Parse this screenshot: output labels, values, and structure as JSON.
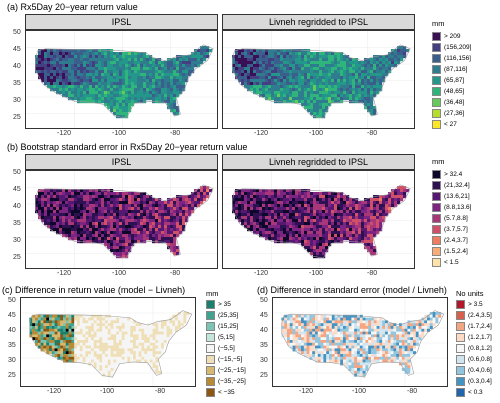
{
  "figure": {
    "panel_a": {
      "title": "(a) Rx5Day 20−year return value",
      "facets": [
        "IPSL",
        "Livneh regridded to IPSL"
      ],
      "legend_title": "mm",
      "legend": [
        {
          "label": "> 209",
          "color": "#3b0f56"
        },
        {
          "label": "(156,209]",
          "color": "#433f83"
        },
        {
          "label": "(116,156]",
          "color": "#3b5f8c"
        },
        {
          "label": "(87,116]",
          "color": "#2f7c8e"
        },
        {
          "label": "(65,87]",
          "color": "#23978a"
        },
        {
          "label": "(48,65]",
          "color": "#2fb47c"
        },
        {
          "label": "(36,48]",
          "color": "#66c95c"
        },
        {
          "label": "(27,36]",
          "color": "#b4dd2c"
        },
        {
          "label": "< 27",
          "color": "#fde725"
        }
      ],
      "yticks": [
        "50",
        "45",
        "40",
        "35",
        "30",
        "25"
      ],
      "xticks": [
        "-120",
        "-100",
        "-80"
      ]
    },
    "panel_b": {
      "title": "(b) Bootstrap standard error in Rx5Day 20−year return value",
      "facets": [
        "IPSL",
        "Livneh regridded to IPSL"
      ],
      "legend_title": "mm",
      "legend": [
        {
          "label": "> 32.4",
          "color": "#0d0829"
        },
        {
          "label": "(21,32.4]",
          "color": "#2e1152"
        },
        {
          "label": "(13.6,21]",
          "color": "#561872"
        },
        {
          "label": "(8.8,13.6]",
          "color": "#7e2482"
        },
        {
          "label": "(5.7,8.8]",
          "color": "#a83779"
        },
        {
          "label": "(3.7,5.7]",
          "color": "#d0506a"
        },
        {
          "label": "(2.4,3.7]",
          "color": "#ef7d5d"
        },
        {
          "label": "(1.5,2.4]",
          "color": "#f8ad78"
        },
        {
          "label": "< 1.5",
          "color": "#fde3a8"
        }
      ],
      "yticks": [
        "50",
        "45",
        "40",
        "35",
        "30",
        "25"
      ],
      "xticks": [
        "-120",
        "-100",
        "-80"
      ]
    },
    "panel_c": {
      "title": "(c) Difference in return value (model − Livneh)",
      "legend_title": "mm",
      "legend": [
        {
          "label": "> 35",
          "color": "#1a7f6c"
        },
        {
          "label": "(25,35]",
          "color": "#3fa38f"
        },
        {
          "label": "(15,25]",
          "color": "#7cc5b4"
        },
        {
          "label": "(5,15]",
          "color": "#c4e6dd"
        },
        {
          "label": "(−5,5]",
          "color": "#f5f5f5"
        },
        {
          "label": "(−15,−5]",
          "color": "#eedfb7"
        },
        {
          "label": "(−25,−15]",
          "color": "#d6b86e"
        },
        {
          "label": "(−35,−25]",
          "color": "#b88a35"
        },
        {
          "label": "< −35",
          "color": "#8c5613"
        }
      ],
      "yticks": [
        "50",
        "45",
        "40",
        "35",
        "30",
        "25"
      ],
      "xticks": [
        "-120",
        "-100",
        "-80"
      ]
    },
    "panel_d": {
      "title": "(d) Difference in standard error (model / Livneh)",
      "legend_title": "No units",
      "legend": [
        {
          "label": "> 3.5",
          "color": "#b2182b"
        },
        {
          "label": "(2.4,3.5]",
          "color": "#d6604d"
        },
        {
          "label": "(1.7,2.4]",
          "color": "#f4a582"
        },
        {
          "label": "(1.2,1.7]",
          "color": "#fddbc7"
        },
        {
          "label": "(0.8,1.2]",
          "color": "#f7f7f7"
        },
        {
          "label": "(0.6,0.8]",
          "color": "#d1e5f0"
        },
        {
          "label": "(0.4,0.6]",
          "color": "#92c5de"
        },
        {
          "label": "(0.3,0.4]",
          "color": "#4393c3"
        },
        {
          "label": "< 0.3",
          "color": "#2166ac"
        }
      ],
      "yticks": [
        "50",
        "45",
        "40",
        "35",
        "30",
        "25"
      ],
      "xticks": [
        "-120",
        "-100",
        "-80"
      ]
    }
  }
}
